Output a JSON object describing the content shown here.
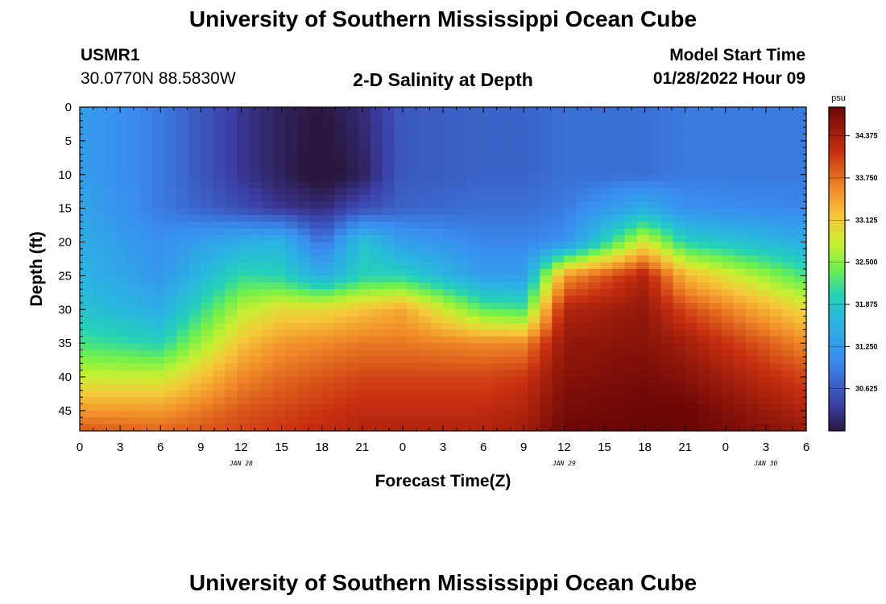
{
  "header": {
    "main_title": "University of Southern Mississippi Ocean Cube",
    "station_id": "USMR1",
    "coords": "30.0770N  88.5830W",
    "subtitle": "2-D Salinity at Depth",
    "model_start_label": "Model Start Time",
    "model_start_value": "01/28/2022 Hour 09",
    "footer_title": "University of Southern Mississippi Ocean Cube"
  },
  "chart_data": {
    "type": "heatmap",
    "title": "2-D Salinity at Depth",
    "xlabel": "Forecast Time(Z)",
    "ylabel": "Depth (ft)",
    "x_range_hours": [
      0,
      54
    ],
    "x_ticks": [
      "0",
      "3",
      "6",
      "9",
      "12",
      "15",
      "18",
      "21",
      "0",
      "3",
      "6",
      "9",
      "12",
      "15",
      "18",
      "21",
      "0",
      "3",
      "6"
    ],
    "date_labels": [
      {
        "label": "JAN 28",
        "hour": 12
      },
      {
        "label": "JAN 29",
        "hour": 36
      },
      {
        "label": "JAN 30",
        "hour": 51
      }
    ],
    "y_range_ft": [
      0,
      48
    ],
    "y_ticks": [
      0,
      5,
      10,
      15,
      20,
      25,
      30,
      35,
      40,
      45
    ],
    "colorbar": {
      "unit": "psu",
      "min": 30.0,
      "max": 34.8,
      "ticks": [
        "34.375",
        "33.750",
        "33.125",
        "32.500",
        "31.875",
        "31.250",
        "30.625"
      ]
    },
    "salinity_grid": {
      "hours": [
        0,
        6,
        12,
        15,
        18,
        21,
        24,
        30,
        33,
        36,
        42,
        45,
        54
      ],
      "depths_ft": [
        0,
        10,
        15,
        20,
        25,
        30,
        35,
        40,
        45,
        48
      ],
      "values_psu": [
        [
          31.3,
          30.9,
          30.3,
          30.1,
          30.0,
          30.2,
          30.6,
          30.7,
          30.7,
          30.8,
          30.8,
          30.9,
          30.9
        ],
        [
          31.3,
          30.9,
          30.3,
          30.1,
          29.9,
          30.1,
          30.6,
          30.7,
          30.7,
          30.8,
          30.8,
          30.9,
          30.9
        ],
        [
          31.4,
          30.9,
          30.5,
          30.3,
          30.2,
          30.5,
          30.7,
          30.8,
          30.8,
          30.9,
          31.5,
          31.1,
          31.0
        ],
        [
          31.5,
          31.1,
          31.5,
          31.6,
          30.8,
          31.8,
          31.3,
          31.0,
          31.0,
          31.1,
          32.9,
          32.0,
          31.5
        ],
        [
          31.6,
          31.2,
          32.1,
          32.0,
          31.5,
          32.0,
          32.0,
          31.3,
          31.3,
          33.5,
          34.3,
          33.3,
          32.2
        ],
        [
          31.8,
          31.5,
          32.7,
          33.0,
          33.0,
          33.2,
          33.4,
          32.3,
          32.2,
          34.3,
          34.5,
          34.0,
          33.0
        ],
        [
          32.2,
          32.0,
          33.2,
          33.5,
          33.6,
          33.7,
          33.7,
          33.6,
          33.6,
          34.5,
          34.6,
          34.4,
          33.6
        ],
        [
          32.8,
          32.8,
          33.6,
          33.8,
          33.9,
          34.0,
          34.0,
          34.0,
          34.1,
          34.6,
          34.7,
          34.6,
          34.0
        ],
        [
          33.5,
          33.5,
          33.9,
          34.0,
          34.1,
          34.2,
          34.2,
          34.2,
          34.3,
          34.7,
          34.8,
          34.8,
          34.3
        ],
        [
          33.9,
          33.8,
          34.0,
          34.1,
          34.2,
          34.3,
          34.3,
          34.3,
          34.4,
          34.8,
          34.8,
          34.8,
          34.5
        ]
      ]
    }
  }
}
